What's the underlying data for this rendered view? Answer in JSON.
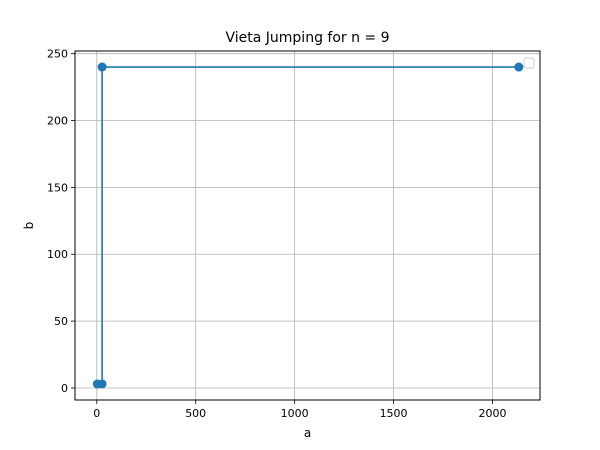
{
  "chart_data": {
    "type": "line",
    "title": "Vieta Jumping for n = 9",
    "xlabel": "a",
    "ylabel": "b",
    "xlim": [
      -110,
      2240
    ],
    "ylim": [
      -9,
      252
    ],
    "x_ticks": [
      0,
      500,
      1000,
      1500,
      2000
    ],
    "y_ticks": [
      0,
      50,
      100,
      150,
      200,
      250
    ],
    "grid": true,
    "legend": "top-right",
    "series": [
      {
        "color": "#1f77b4",
        "marker": "circle",
        "points": [
          {
            "x": 3,
            "y": 3
          },
          {
            "x": 27,
            "y": 3
          },
          {
            "x": 27,
            "y": 240
          },
          {
            "x": 2133,
            "y": 240
          }
        ]
      }
    ]
  }
}
